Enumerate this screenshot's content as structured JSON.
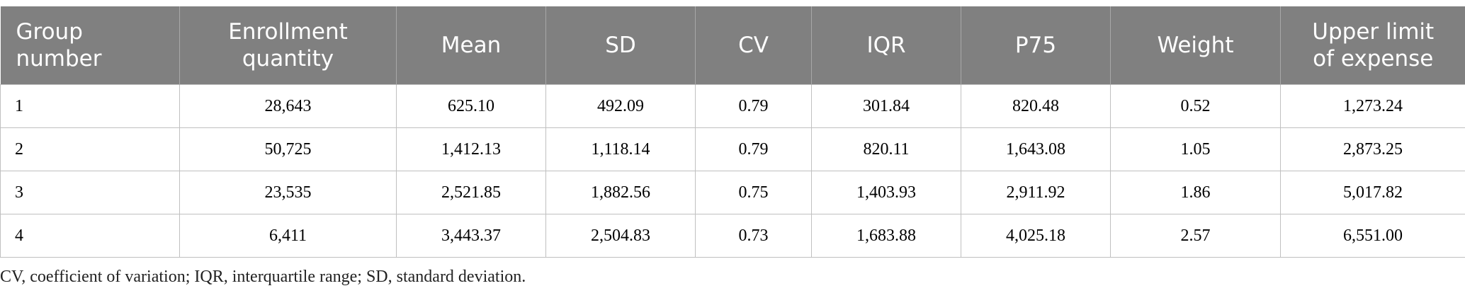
{
  "table": {
    "headers": [
      [
        "Group",
        "number"
      ],
      [
        "Enrollment",
        "quantity"
      ],
      [
        "Mean"
      ],
      [
        "SD"
      ],
      [
        "CV"
      ],
      [
        "IQR"
      ],
      [
        "P75"
      ],
      [
        "Weight"
      ],
      [
        "Upper limit",
        "of expense"
      ]
    ],
    "rows": [
      [
        "1",
        "28,643",
        "625.10",
        "492.09",
        "0.79",
        "301.84",
        "820.48",
        "0.52",
        "1,273.24"
      ],
      [
        "2",
        "50,725",
        "1,412.13",
        "1,118.14",
        "0.79",
        "820.11",
        "1,643.08",
        "1.05",
        "2,873.25"
      ],
      [
        "3",
        "23,535",
        "2,521.85",
        "1,882.56",
        "0.75",
        "1,403.93",
        "2,911.92",
        "1.86",
        "5,017.82"
      ],
      [
        "4",
        "6,411",
        "3,443.37",
        "2,504.83",
        "0.73",
        "1,683.88",
        "4,025.18",
        "2.57",
        "6,551.00"
      ]
    ]
  },
  "footnote": "CV, coefficient of variation; IQR, interquartile range; SD, standard deviation."
}
